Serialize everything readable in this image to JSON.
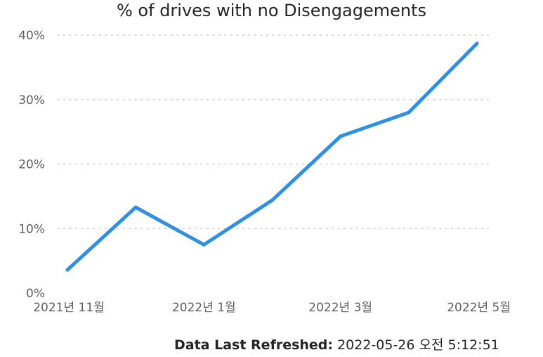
{
  "chart_data": {
    "type": "line",
    "title": "% of drives with no Disengagements",
    "xlabel": "",
    "ylabel": "",
    "x": [
      "2021-11",
      "2021-12",
      "2022-01",
      "2022-02",
      "2022-03",
      "2022-04",
      "2022-05"
    ],
    "x_tick_labels": [
      {
        "x": "2021-11",
        "label": "2021년 11월"
      },
      {
        "x": "2022-01",
        "label": "2022년 1월"
      },
      {
        "x": "2022-03",
        "label": "2022년 3월"
      },
      {
        "x": "2022-05",
        "label": "2022년 5월"
      }
    ],
    "series": [
      {
        "values": [
          3.6,
          13.3,
          7.5,
          14.4,
          24.3,
          28.0,
          38.7
        ],
        "color": "#2f8fe0"
      }
    ],
    "ylim": [
      0,
      40
    ],
    "y_ticks": [
      0,
      10,
      20,
      30,
      40
    ],
    "y_tick_labels": [
      "0%",
      "10%",
      "20%",
      "30%",
      "40%"
    ],
    "grid": "horizontal dotted",
    "legend": "none"
  },
  "footer": {
    "refresh_label": "Data Last Refreshed:",
    "refresh_value": "2022-05-26 오전 5:12:51"
  }
}
